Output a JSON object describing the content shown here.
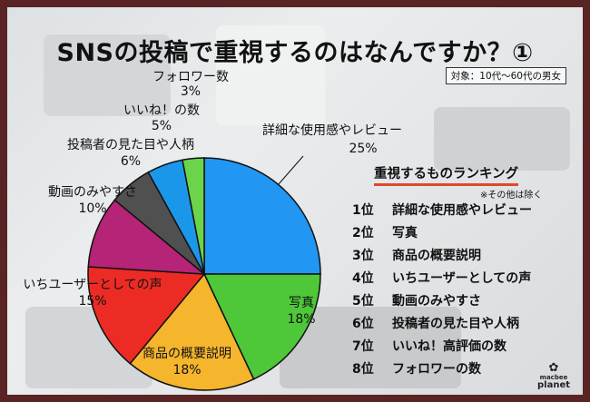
{
  "title": "SNSの投稿で重視するのはなんですか？①",
  "target_note": "対象：10代〜60代の男女",
  "chart_data": {
    "type": "pie",
    "title": "SNSの投稿で重視するのはなんですか？①",
    "unit": "%",
    "slices": [
      {
        "label": "詳細な使用感やレビュー",
        "value": 25,
        "value_label": "25%",
        "color": "#2196f3"
      },
      {
        "label": "写真",
        "value": 18,
        "value_label": "18%",
        "color": "#4ec739"
      },
      {
        "label": "商品の概要説明",
        "value": 18,
        "value_label": "18%",
        "color": "#f5b52d"
      },
      {
        "label": "いちユーザーとしての声",
        "value": 15,
        "value_label": "15%",
        "color": "#ed2b25"
      },
      {
        "label": "動画のみやすさ",
        "value": 10,
        "value_label": "10%",
        "color": "#b52477"
      },
      {
        "label": "投稿者の見た目や人柄",
        "value": 6,
        "value_label": "6%",
        "color": "#505050"
      },
      {
        "label": "いいね！の数",
        "value": 5,
        "value_label": "5%",
        "color": "#1b97ea"
      },
      {
        "label": "フォロワー数",
        "value": 3,
        "value_label": "3%",
        "color": "#6bd44a"
      }
    ]
  },
  "ranking": {
    "title": "重視するものランキング",
    "note": "※その他は除く",
    "items": [
      {
        "rank": "1位",
        "label": "詳細な使用感やレビュー"
      },
      {
        "rank": "2位",
        "label": "写真"
      },
      {
        "rank": "3位",
        "label": "商品の概要説明"
      },
      {
        "rank": "4位",
        "label": "いちユーザーとしての声"
      },
      {
        "rank": "5位",
        "label": "動画のみやすさ"
      },
      {
        "rank": "6位",
        "label": "投稿者の見た目や人柄"
      },
      {
        "rank": "7位",
        "label": "いいね！高評価の数"
      },
      {
        "rank": "8位",
        "label": "フォロワーの数"
      }
    ]
  },
  "logo": {
    "line1": "macbee",
    "line2": "planet"
  }
}
